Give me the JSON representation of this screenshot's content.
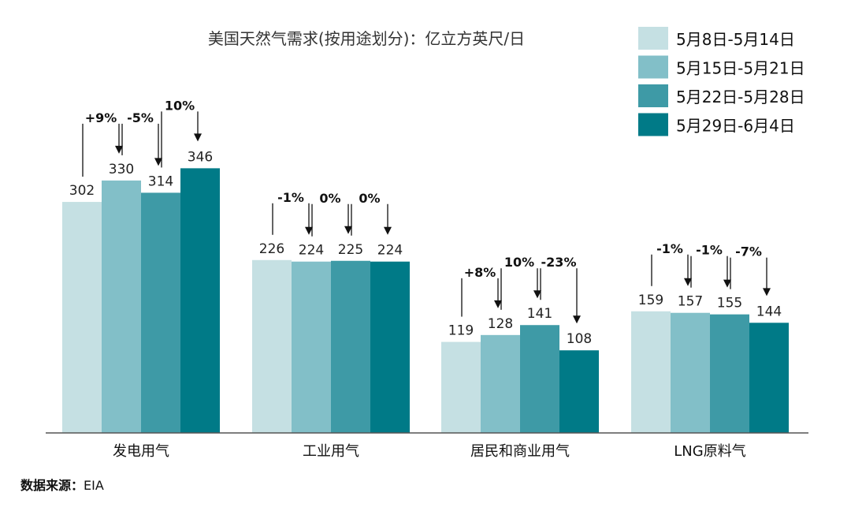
{
  "chart_data": {
    "type": "bar",
    "title": "美国天然气需求(按用途划分)：亿立方英尺/日",
    "categories": [
      "发电用气",
      "工业用气",
      "居民和商业用气",
      "LNG原料气"
    ],
    "series": [
      {
        "name": "5月8日-5月14日",
        "color": "#c5e0e3",
        "values": [
          302,
          226,
          119,
          159
        ]
      },
      {
        "name": "5月15日-5月21日",
        "color": "#82bfc8",
        "values": [
          330,
          224,
          128,
          157
        ]
      },
      {
        "name": "5月22日-5月28日",
        "color": "#3e9aa6",
        "values": [
          314,
          225,
          141,
          155
        ]
      },
      {
        "name": "5月29日-6月4日",
        "color": "#007a87",
        "values": [
          346,
          224,
          108,
          144
        ]
      }
    ],
    "changes": [
      [
        "+9%",
        "-5%",
        "10%"
      ],
      [
        "-1%",
        "0%",
        "0%"
      ],
      [
        "+8%",
        "10%",
        "-23%"
      ],
      [
        "-1%",
        "-1%",
        "-7%"
      ]
    ],
    "legend_position": "top-right",
    "grid": false
  },
  "source": {
    "label": "数据来源：",
    "value": "EIA"
  }
}
